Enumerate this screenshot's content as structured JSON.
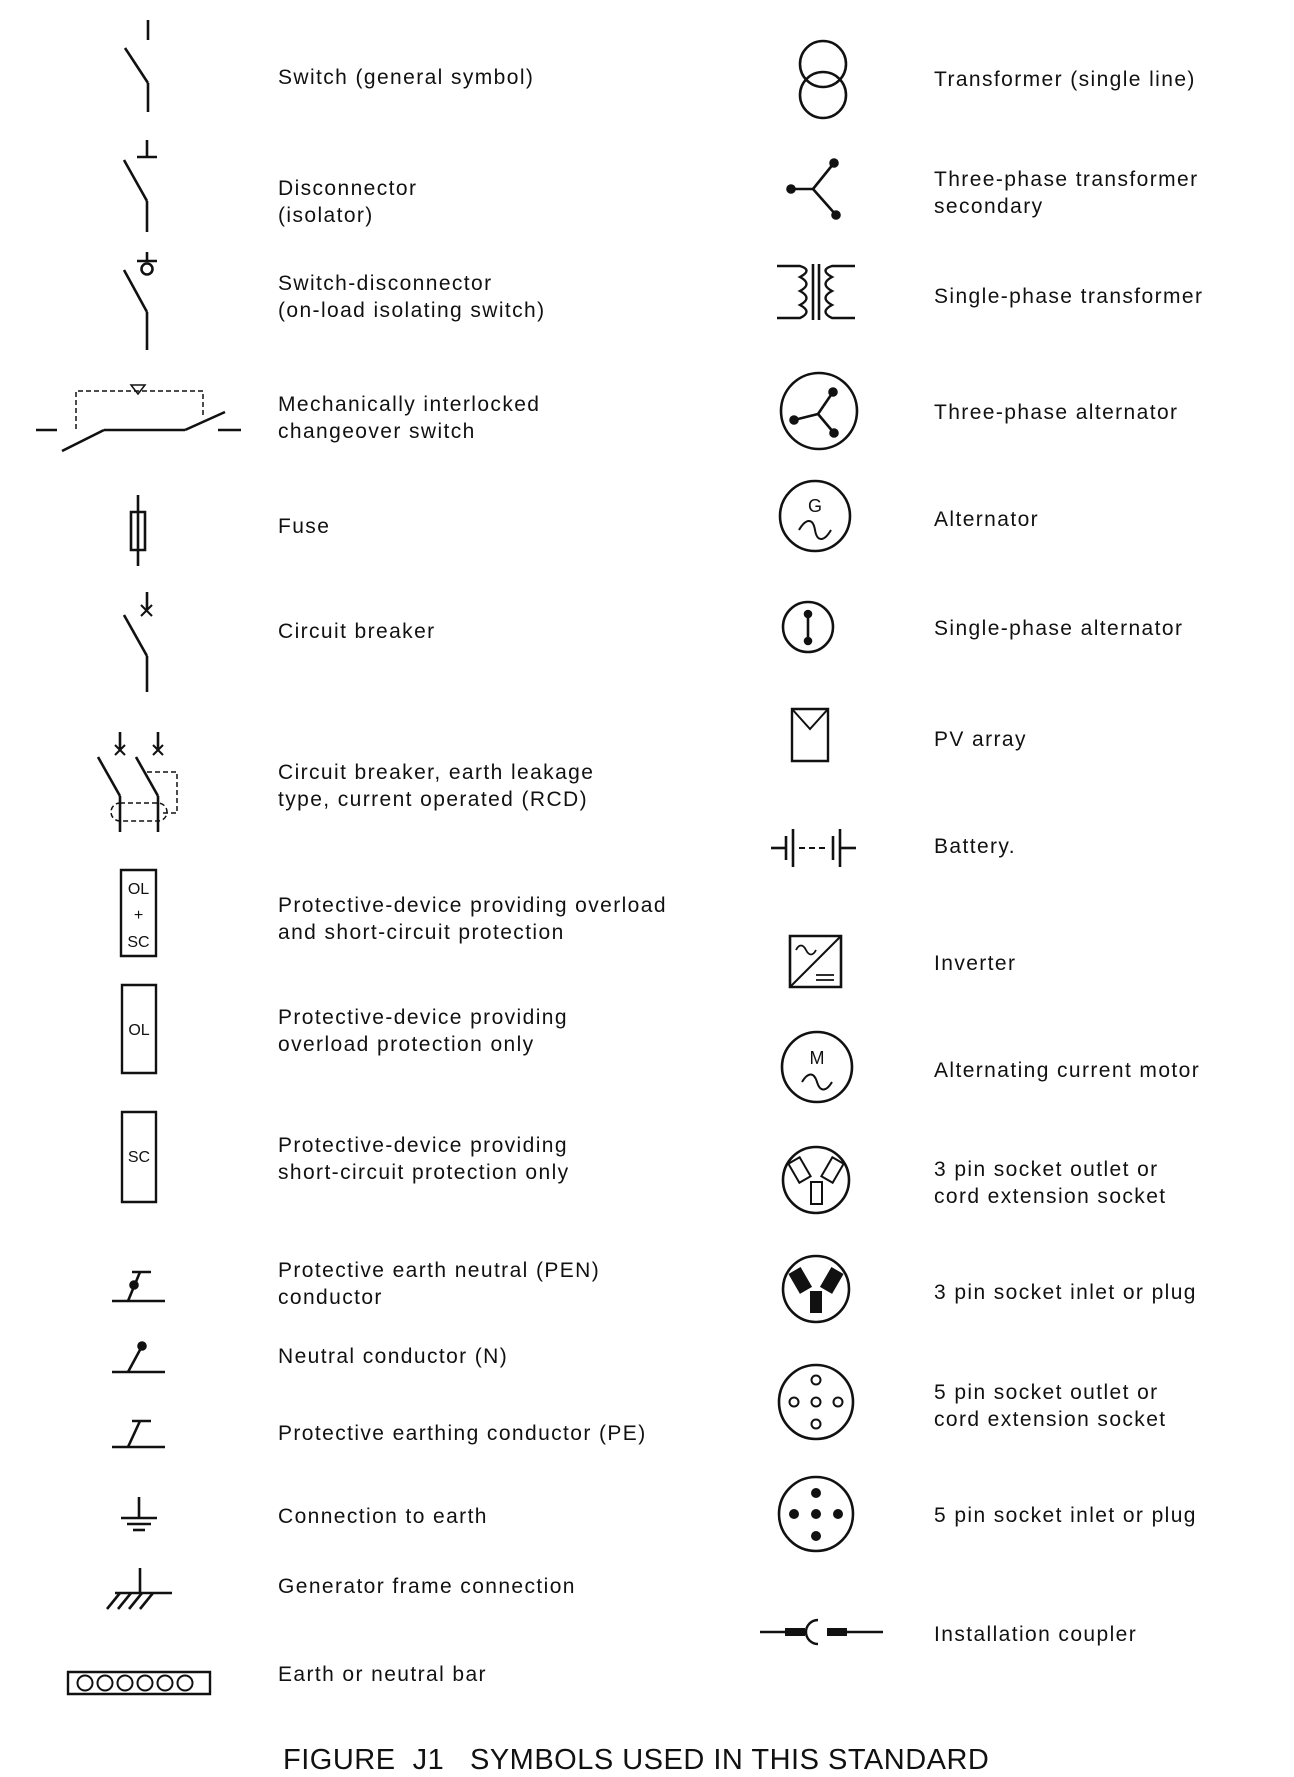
{
  "left_column": [
    {
      "icon": "switch-icon",
      "lines": [
        "Switch (general symbol)"
      ]
    },
    {
      "icon": "disconnector-icon",
      "lines": [
        "Disconnector",
        "(isolator)"
      ]
    },
    {
      "icon": "switch-disconnector-icon",
      "lines": [
        "Switch-disconnector",
        "(on-load isolating switch)"
      ]
    },
    {
      "icon": "changeover-switch-icon",
      "lines": [
        "Mechanically interlocked",
        "changeover switch"
      ]
    },
    {
      "icon": "fuse-icon",
      "lines": [
        "Fuse"
      ]
    },
    {
      "icon": "circuit-breaker-icon",
      "lines": [
        "Circuit breaker"
      ]
    },
    {
      "icon": "rcd-icon",
      "lines": [
        "Circuit breaker, earth leakage",
        "type, current operated (RCD)"
      ]
    },
    {
      "icon": "ol-sc-device-icon",
      "lines": [
        "Protective-device providing overload",
        "and short-circuit protection"
      ]
    },
    {
      "icon": "ol-device-icon",
      "lines": [
        "Protective-device providing",
        "overload protection only"
      ]
    },
    {
      "icon": "sc-device-icon",
      "lines": [
        "Protective-device providing",
        "short-circuit protection only"
      ]
    },
    {
      "icon": "pen-conductor-icon",
      "lines": [
        "Protective earth neutral (PEN)",
        "conductor"
      ]
    },
    {
      "icon": "neutral-conductor-icon",
      "lines": [
        "Neutral conductor (N)"
      ]
    },
    {
      "icon": "pe-conductor-icon",
      "lines": [
        "Protective earthing conductor (PE)"
      ]
    },
    {
      "icon": "earth-icon",
      "lines": [
        "Connection to earth"
      ]
    },
    {
      "icon": "frame-connection-icon",
      "lines": [
        "Generator frame connection"
      ]
    },
    {
      "icon": "earth-bar-icon",
      "lines": [
        "Earth or neutral bar"
      ]
    }
  ],
  "right_column": [
    {
      "icon": "transformer-single-line-icon",
      "lines": [
        "Transformer  (single line)"
      ]
    },
    {
      "icon": "three-phase-secondary-icon",
      "lines": [
        "Three-phase transformer",
        "secondary"
      ]
    },
    {
      "icon": "single-phase-transformer-icon",
      "lines": [
        "Single-phase transformer"
      ]
    },
    {
      "icon": "three-phase-alternator-icon",
      "lines": [
        "Three-phase alternator"
      ]
    },
    {
      "icon": "alternator-icon",
      "lines": [
        "Alternator"
      ]
    },
    {
      "icon": "single-phase-alternator-icon",
      "lines": [
        "Single-phase alternator"
      ]
    },
    {
      "icon": "pv-array-icon",
      "lines": [
        "PV array"
      ]
    },
    {
      "icon": "battery-icon",
      "lines": [
        "Battery."
      ]
    },
    {
      "icon": "inverter-icon",
      "lines": [
        "Inverter"
      ]
    },
    {
      "icon": "ac-motor-icon",
      "lines": [
        "Alternating current motor"
      ]
    },
    {
      "icon": "three-pin-outlet-icon",
      "lines": [
        "3 pin socket outlet or",
        "cord extension socket"
      ]
    },
    {
      "icon": "three-pin-plug-icon",
      "lines": [
        "3 pin socket inlet or plug"
      ]
    },
    {
      "icon": "five-pin-outlet-icon",
      "lines": [
        "5 pin socket outlet or",
        "cord extension socket"
      ]
    },
    {
      "icon": "five-pin-plug-icon",
      "lines": [
        "5 pin socket inlet or plug"
      ]
    },
    {
      "icon": "installation-coupler-icon",
      "lines": [
        "Installation coupler"
      ]
    }
  ],
  "symbol_text": {
    "ol_sc": [
      "OL",
      "+",
      "SC"
    ],
    "ol": "OL",
    "sc": "SC",
    "alternator_letter": "G",
    "motor_letter": "M"
  },
  "caption": "FIGURE  J1   SYMBOLS USED IN THIS STANDARD"
}
